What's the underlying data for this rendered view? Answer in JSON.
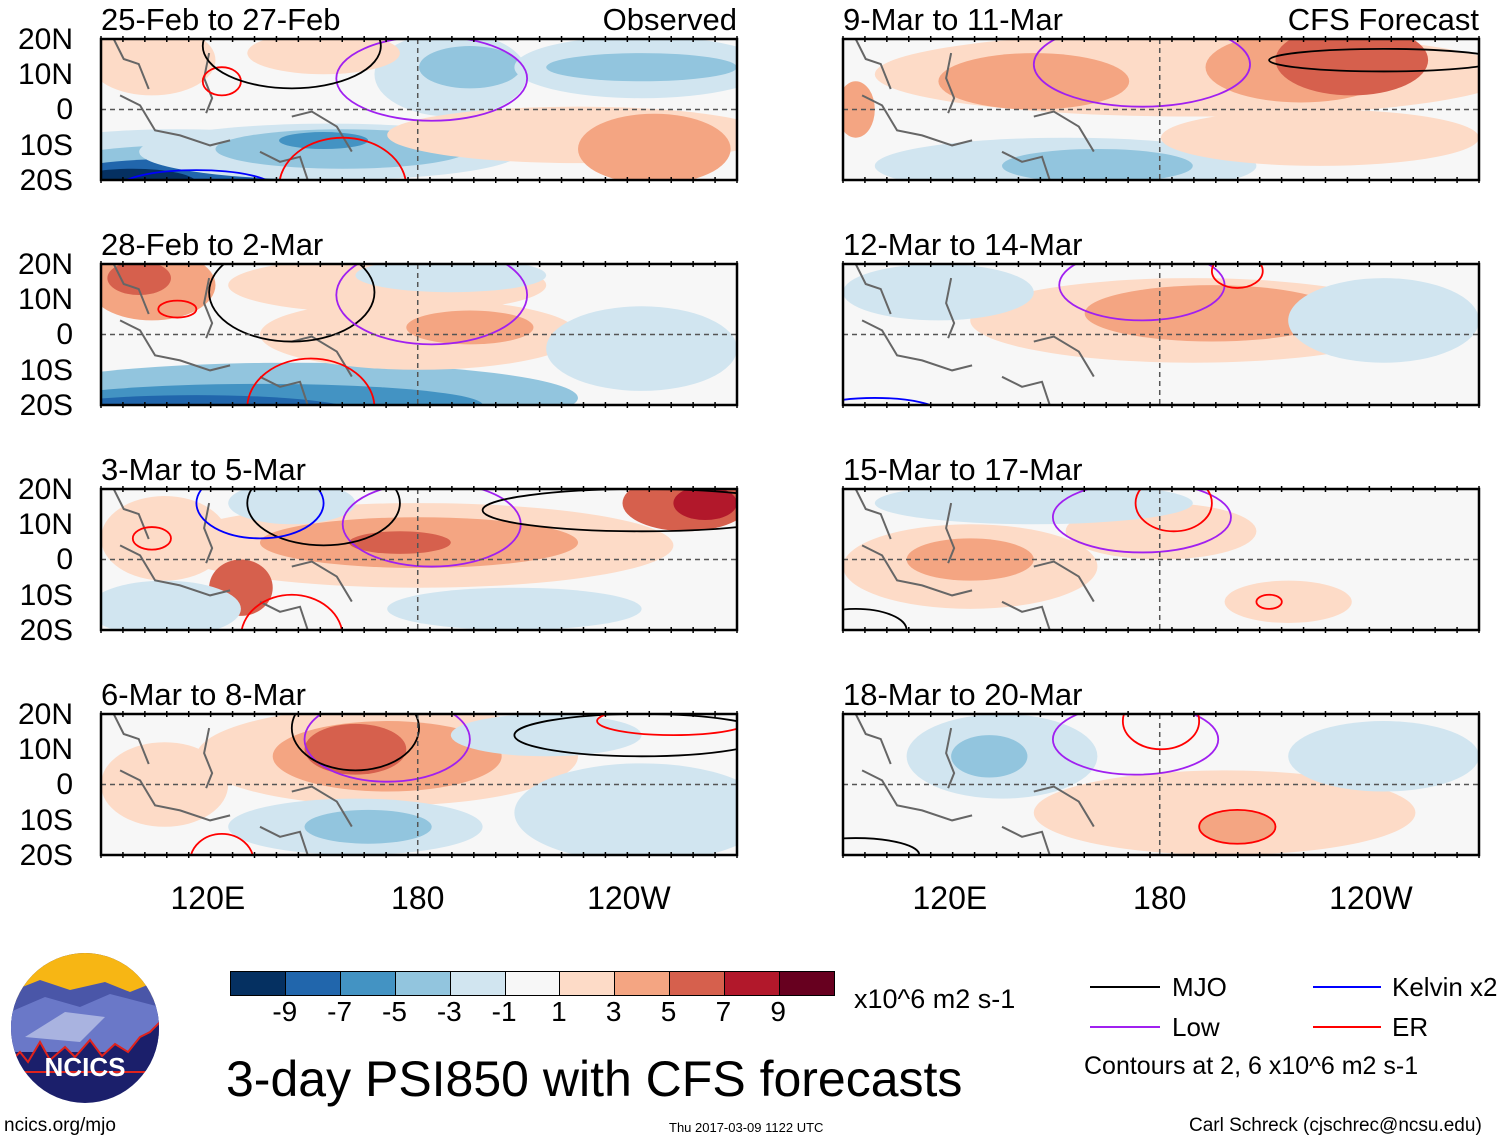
{
  "panels": [
    {
      "title": "25-Feb to 27-Feb",
      "tag": "Observed"
    },
    {
      "title": "28-Feb to 2-Mar",
      "tag": ""
    },
    {
      "title": "3-Mar to 5-Mar",
      "tag": ""
    },
    {
      "title": "6-Mar to 8-Mar",
      "tag": ""
    },
    {
      "title": "9-Mar to 11-Mar",
      "tag": "CFS Forecast"
    },
    {
      "title": "12-Mar to 14-Mar",
      "tag": ""
    },
    {
      "title": "15-Mar to 17-Mar",
      "tag": ""
    },
    {
      "title": "18-Mar to 20-Mar",
      "tag": ""
    }
  ],
  "lat_labels": [
    "20N",
    "10N",
    "0",
    "10S",
    "20S"
  ],
  "lon_labels": [
    "120E",
    "180",
    "120W"
  ],
  "colorbar": {
    "labels": [
      "-9",
      "-7",
      "-5",
      "-3",
      "-1",
      "1",
      "3",
      "5",
      "7",
      "9"
    ],
    "colors": [
      "#053061",
      "#2166ac",
      "#4393c3",
      "#92c5de",
      "#d1e5f0",
      "#f7f7f7",
      "#fddbc7",
      "#f4a582",
      "#d6604d",
      "#b2182b",
      "#67001f"
    ],
    "units": "x10^6 m2 s-1"
  },
  "legend": {
    "items": [
      {
        "label": "MJO",
        "color": "#000000"
      },
      {
        "label": "Kelvin x2",
        "color": "#0000ff"
      },
      {
        "label": "Low",
        "color": "#a020f0"
      },
      {
        "label": "ER",
        "color": "#ff0000"
      }
    ],
    "note": "Contours at 2, 6 x10^6 m2 s-1"
  },
  "title": "3-day PSI850 with CFS forecasts",
  "logo": {
    "text": "NCICS"
  },
  "footer": {
    "left": "ncics.org/mjo",
    "center": "Thu 2017-03-09 1122 UTC",
    "right": "Carl Schreck (cjschrec@ncsu.edu)"
  }
}
